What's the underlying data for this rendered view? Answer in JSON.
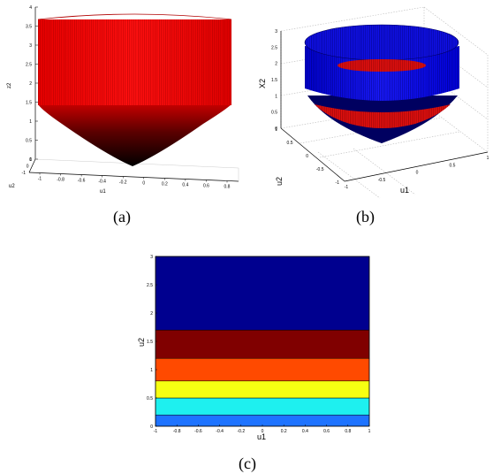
{
  "chart_data": [
    {
      "panel": "(a)",
      "type": "surface3d",
      "surface_color": "#ff0000",
      "shade_color": "#000000",
      "xlabel": "u1",
      "ylabel": "u2",
      "zlabel": "z2",
      "x_ticks": [
        "-1",
        "-0.8",
        "-0.6",
        "-0.4",
        "-0.2",
        "0",
        "0.2",
        "0.4",
        "0.6",
        "0.8"
      ],
      "y_ticks": [
        "-1",
        "0",
        "1"
      ],
      "z_ticks": [
        "0",
        "0.5",
        "1",
        "1.5",
        "2",
        "2.5",
        "3",
        "3.5",
        "4"
      ],
      "zlim": [
        0,
        4
      ],
      "caption": "(a)"
    },
    {
      "panel": "(b)",
      "type": "surface3d",
      "outer_color": "#0000ff",
      "inner_color": "#ff0000",
      "xlabel": "u1",
      "ylabel": "u2",
      "zlabel": "X2",
      "x_ticks": [
        "-1",
        "-0.5",
        "0",
        "0.5",
        "1"
      ],
      "y_ticks": [
        "-1",
        "-0.5",
        "0",
        "0.5",
        "1"
      ],
      "z_ticks": [
        "0",
        "0.5",
        "1",
        "1.5",
        "2",
        "2.5",
        "3"
      ],
      "zlim": [
        0,
        3
      ],
      "grid": true,
      "caption": "(b)"
    },
    {
      "panel": "(c)",
      "type": "heatmap",
      "xlabel": "u1",
      "ylabel": "u2",
      "xlim": [
        -1,
        1
      ],
      "ylim": [
        0,
        3
      ],
      "x_ticks": [
        "-1",
        "-0.8",
        "-0.6",
        "-0.4",
        "-0.2",
        "0",
        "0.2",
        "0.4",
        "0.6",
        "0.8",
        "1"
      ],
      "y_ticks": [
        "0",
        "0.5",
        "1",
        "1.5",
        "2",
        "2.5",
        "3"
      ],
      "bands": [
        {
          "y0": 0,
          "y1": 0.2,
          "color": "#1e73ff"
        },
        {
          "y0": 0.2,
          "y1": 0.5,
          "color": "#1ef0ef"
        },
        {
          "y0": 0.5,
          "y1": 0.8,
          "color": "#f7ff12"
        },
        {
          "y0": 0.8,
          "y1": 1.2,
          "color": "#ff4a00"
        },
        {
          "y0": 1.2,
          "y1": 1.7,
          "color": "#800000"
        },
        {
          "y0": 1.7,
          "y1": 3.0,
          "color": "#00008f"
        }
      ],
      "caption": "(c)"
    }
  ]
}
